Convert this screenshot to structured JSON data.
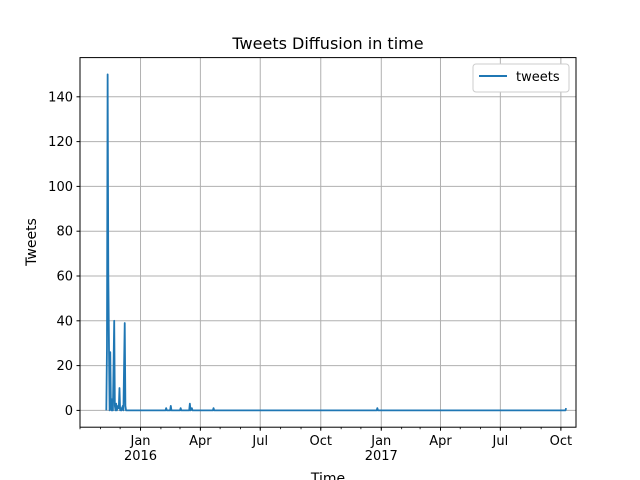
{
  "chart_data": {
    "type": "line",
    "title": "Tweets Diffusion in time",
    "xlabel": "Time",
    "ylabel": "Tweets",
    "grid": true,
    "legend_position": "top-right",
    "line_color": "#1f77b4",
    "x_range": [
      "2015-10-01",
      "2017-10-24"
    ],
    "ylim": [
      -7.5,
      157.5
    ],
    "y_ticks": [
      0,
      20,
      40,
      60,
      80,
      100,
      120,
      140
    ],
    "x_ticks": [
      {
        "date": "2016-01-01",
        "label": "Jan",
        "sublabel": "2016"
      },
      {
        "date": "2016-04-01",
        "label": "Apr",
        "sublabel": ""
      },
      {
        "date": "2016-07-01",
        "label": "Jul",
        "sublabel": ""
      },
      {
        "date": "2016-10-01",
        "label": "Oct",
        "sublabel": ""
      },
      {
        "date": "2017-01-01",
        "label": "Jan",
        "sublabel": "2017"
      },
      {
        "date": "2017-04-01",
        "label": "Apr",
        "sublabel": ""
      },
      {
        "date": "2017-07-01",
        "label": "Jul",
        "sublabel": ""
      },
      {
        "date": "2017-10-01",
        "label": "Oct",
        "sublabel": ""
      }
    ],
    "series": [
      {
        "name": "tweets",
        "points": [
          [
            "2015-11-10",
            0
          ],
          [
            "2015-11-11",
            28
          ],
          [
            "2015-11-12",
            150
          ],
          [
            "2015-11-13",
            62
          ],
          [
            "2015-11-14",
            30
          ],
          [
            "2015-11-15",
            0
          ],
          [
            "2015-11-16",
            26
          ],
          [
            "2015-11-17",
            2
          ],
          [
            "2015-11-18",
            0
          ],
          [
            "2015-11-19",
            5
          ],
          [
            "2015-11-20",
            0
          ],
          [
            "2015-11-22",
            40
          ],
          [
            "2015-11-23",
            2
          ],
          [
            "2015-11-24",
            0
          ],
          [
            "2015-11-25",
            3
          ],
          [
            "2015-11-26",
            0
          ],
          [
            "2015-11-28",
            2
          ],
          [
            "2015-11-29",
            1
          ],
          [
            "2015-11-30",
            10
          ],
          [
            "2015-12-01",
            0
          ],
          [
            "2015-12-02",
            1
          ],
          [
            "2015-12-03",
            0
          ],
          [
            "2015-12-05",
            2
          ],
          [
            "2015-12-06",
            0
          ],
          [
            "2015-12-08",
            39
          ],
          [
            "2015-12-09",
            2
          ],
          [
            "2015-12-10",
            0
          ],
          [
            "2016-02-08",
            0
          ],
          [
            "2016-02-09",
            1
          ],
          [
            "2016-02-10",
            0
          ],
          [
            "2016-02-15",
            0
          ],
          [
            "2016-02-16",
            2
          ],
          [
            "2016-02-17",
            0
          ],
          [
            "2016-03-01",
            0
          ],
          [
            "2016-03-02",
            1
          ],
          [
            "2016-03-03",
            0
          ],
          [
            "2016-03-15",
            0
          ],
          [
            "2016-03-16",
            3
          ],
          [
            "2016-03-17",
            0
          ],
          [
            "2016-03-19",
            1
          ],
          [
            "2016-03-20",
            0
          ],
          [
            "2016-04-20",
            0
          ],
          [
            "2016-04-21",
            1
          ],
          [
            "2016-04-22",
            0
          ],
          [
            "2016-12-25",
            0
          ],
          [
            "2016-12-26",
            1
          ],
          [
            "2016-12-27",
            0
          ],
          [
            "2017-10-08",
            0
          ],
          [
            "2017-10-09",
            1
          ]
        ]
      }
    ]
  }
}
